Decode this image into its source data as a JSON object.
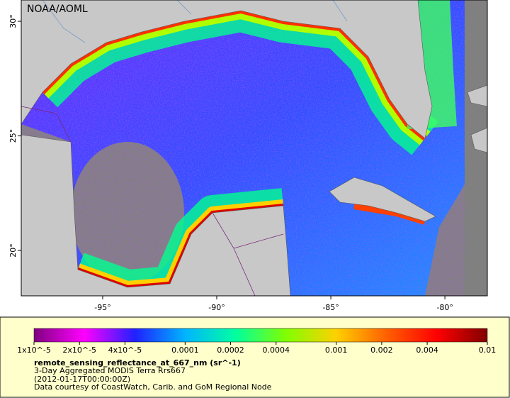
{
  "map": {
    "credit": "NOAA/AOML",
    "lon_range": [
      -98.57,
      -78.14
    ],
    "lat_range": [
      18.02,
      30.93
    ],
    "lon_ticks": [
      {
        "value": -95,
        "label": "-95°"
      },
      {
        "value": -90,
        "label": "-90°"
      },
      {
        "value": -85,
        "label": "-85°"
      },
      {
        "value": -80,
        "label": "-80°"
      }
    ],
    "lat_ticks": [
      {
        "value": 20,
        "label": "20°"
      },
      {
        "value": 25,
        "label": "25°"
      },
      {
        "value": 30,
        "label": "30°"
      }
    ]
  },
  "colorbar": {
    "scale": "log",
    "range": [
      1e-05,
      0.01
    ],
    "colors": [
      "#800080",
      "#ff00ff",
      "#2020ff",
      "#00b4ff",
      "#00ffa0",
      "#80ff00",
      "#ffd000",
      "#ff6000",
      "#ff0000",
      "#800000"
    ],
    "ticks": [
      {
        "value": 1e-05,
        "label": "1x10^-5"
      },
      {
        "value": 2e-05,
        "label": "2x10^-5"
      },
      {
        "value": 4e-05,
        "label": "4x10^-5"
      },
      0.0001,
      0.0002,
      0.0004,
      0.001,
      0.002,
      0.004,
      0.01
    ]
  },
  "legend": {
    "variable": "remote_sensing_reflectance_at_667_nm (sr^-1)",
    "description": "3-Day Aggregated MODIS Terra Rrs667",
    "time": "(2012-01-17T00:00:00Z)",
    "credit": "Data courtesy of CoastWatch, Carib. and GoM Regional Node"
  }
}
